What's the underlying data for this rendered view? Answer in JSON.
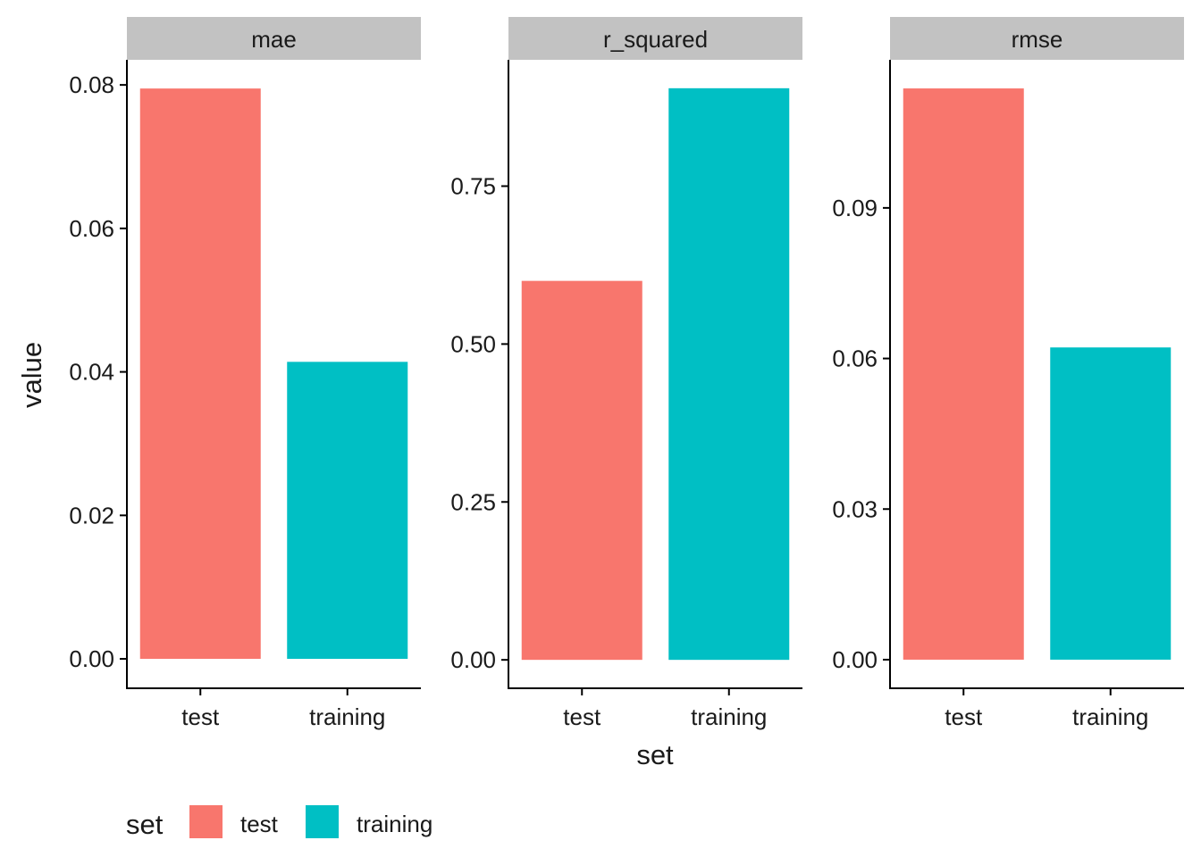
{
  "chart_data": {
    "type": "bar",
    "facet_by": "metric",
    "xlabel": "set",
    "ylabel": "value",
    "categories": [
      "test",
      "training"
    ],
    "colors": {
      "test": "#F8766D",
      "training": "#00BFC4"
    },
    "grid": false,
    "legend": {
      "title": "set",
      "position": "bottom-left",
      "entries": [
        "test",
        "training"
      ]
    },
    "panels": [
      {
        "name": "mae",
        "values": [
          0.0795,
          0.0414
        ],
        "ylim": [
          -0.0041,
          0.0835
        ],
        "ticks": [
          0.0,
          0.02,
          0.04,
          0.06,
          0.08
        ],
        "tick_labels": [
          "0.00",
          "0.02",
          "0.04",
          "0.06",
          "0.08"
        ]
      },
      {
        "name": "r_squared",
        "values": [
          0.6,
          0.905
        ],
        "ylim": [
          -0.045,
          0.95
        ],
        "ticks": [
          0.0,
          0.25,
          0.5,
          0.75
        ],
        "tick_labels": [
          "0.00",
          "0.25",
          "0.50",
          "0.75"
        ]
      },
      {
        "name": "rmse",
        "values": [
          0.1138,
          0.0622
        ],
        "ylim": [
          -0.0057,
          0.1195
        ],
        "ticks": [
          0.0,
          0.03,
          0.06,
          0.09
        ],
        "tick_labels": [
          "0.00",
          "0.03",
          "0.06",
          "0.09"
        ]
      }
    ]
  }
}
